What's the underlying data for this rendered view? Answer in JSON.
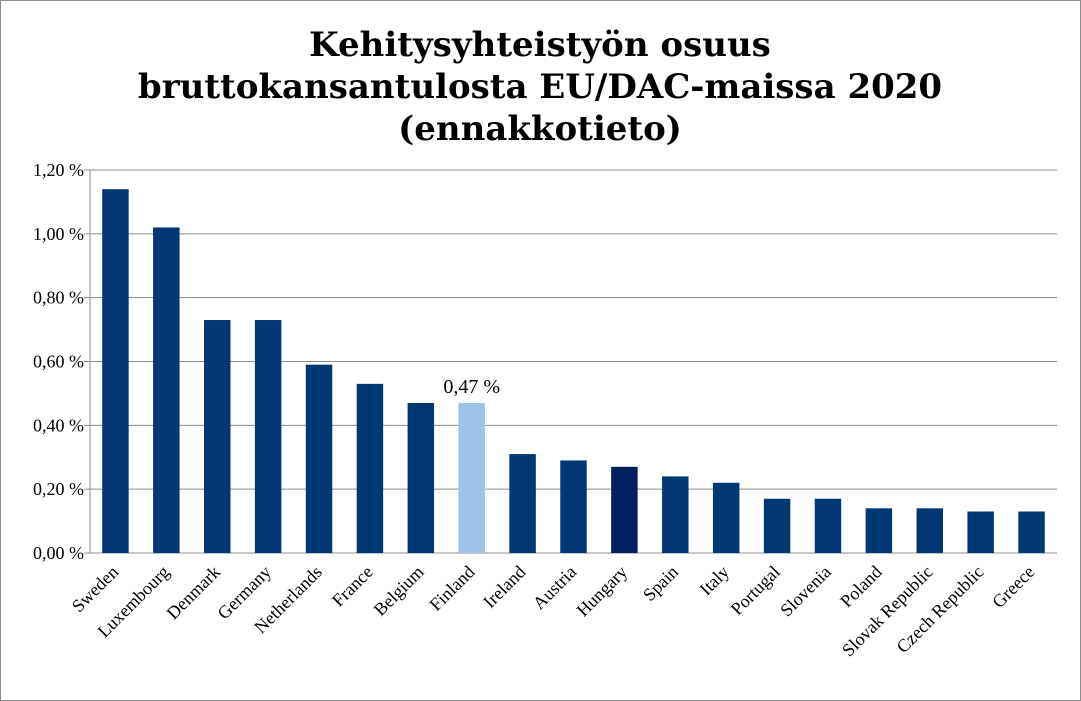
{
  "chart_data": {
    "type": "bar",
    "title_lines": [
      "Kehitysyhteistyön osuus",
      "bruttokansantulosta EU/DAC-maissa 2020",
      "(ennakkotieto)"
    ],
    "xlabel": "",
    "ylabel": "",
    "ylim": [
      0,
      1.2
    ],
    "yticks": [
      0,
      0.2,
      0.4,
      0.6,
      0.8,
      1.0,
      1.2
    ],
    "ytick_labels": [
      "0,00 %",
      "0,20 %",
      "0,40 %",
      "0,60 %",
      "0,80 %",
      "1,00 %",
      "1,20 %"
    ],
    "grid": true,
    "categories": [
      "Sweden",
      "Luxembourg",
      "Denmark",
      "Germany",
      "Netherlands",
      "France",
      "Belgium",
      "Finland",
      "Ireland",
      "Austria",
      "Hungary",
      "Spain",
      "Italy",
      "Portugal",
      "Slovenia",
      "Poland",
      "Slovak Republic",
      "Czech Republic",
      "Greece"
    ],
    "values": [
      1.14,
      1.02,
      0.73,
      0.73,
      0.59,
      0.53,
      0.47,
      0.47,
      0.31,
      0.29,
      0.27,
      0.24,
      0.22,
      0.17,
      0.17,
      0.14,
      0.14,
      0.13,
      0.13
    ],
    "colors": {
      "default": "#003875",
      "highlight": "#9dc3e6",
      "dark": "#002060",
      "grid": "#8c8c8c",
      "axis": "#8c8c8c"
    },
    "highlight_index": 7,
    "dark_index": 10,
    "annotation": {
      "category": "Finland",
      "text": "0,47 %"
    }
  }
}
